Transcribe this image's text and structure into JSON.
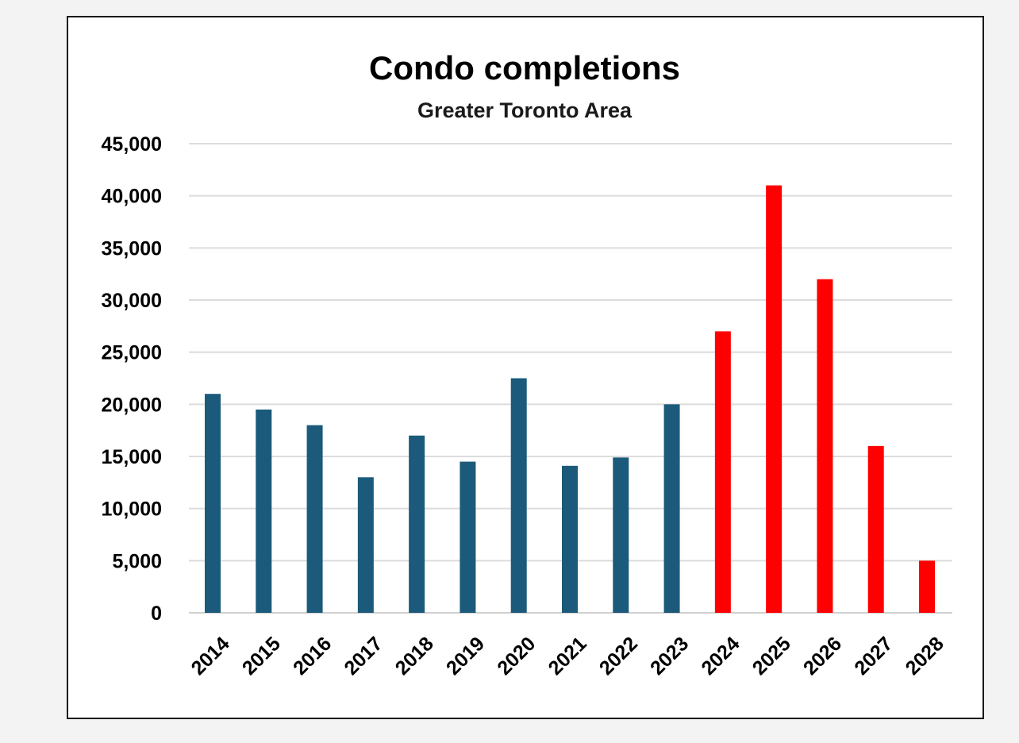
{
  "chart_data": {
    "type": "bar",
    "title": "Condo completions",
    "subtitle": "Greater Toronto Area",
    "xlabel": "",
    "ylabel": "",
    "ylim": [
      0,
      45000
    ],
    "y_ticks": [
      "0",
      "5,000",
      "10,000",
      "15,000",
      "20,000",
      "25,000",
      "30,000",
      "35,000",
      "40,000",
      "45,000"
    ],
    "y_tick_values": [
      0,
      5000,
      10000,
      15000,
      20000,
      25000,
      30000,
      35000,
      40000,
      45000
    ],
    "grid": true,
    "legend": "none",
    "categories": [
      "2014",
      "2015",
      "2016",
      "2017",
      "2018",
      "2019",
      "2020",
      "2021",
      "2022",
      "2023",
      "2024",
      "2025",
      "2026",
      "2027",
      "2028"
    ],
    "values": [
      21000,
      19500,
      18000,
      13000,
      17000,
      14500,
      22500,
      14100,
      14900,
      20000,
      27000,
      41000,
      32000,
      16000,
      5000
    ],
    "bar_colors": [
      "#1b5a7a",
      "#1b5a7a",
      "#1b5a7a",
      "#1b5a7a",
      "#1b5a7a",
      "#1b5a7a",
      "#1b5a7a",
      "#1b5a7a",
      "#1b5a7a",
      "#1b5a7a",
      "#ff0000",
      "#ff0000",
      "#ff0000",
      "#ff0000",
      "#ff0000"
    ]
  }
}
